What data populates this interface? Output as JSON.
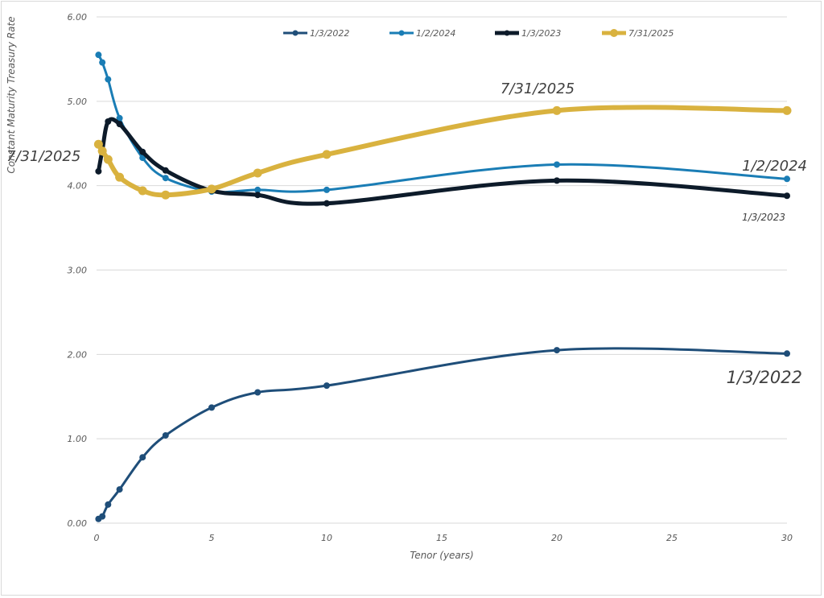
{
  "chart_data": {
    "type": "line",
    "title": "",
    "xlabel": "Tenor (years)",
    "ylabel": "Constant Maturity Treasury Rate",
    "xlim": [
      0,
      30
    ],
    "ylim": [
      0,
      6
    ],
    "x_ticks": [
      0,
      5,
      10,
      15,
      20,
      25,
      30
    ],
    "x_tick_labels": [
      "0",
      "5",
      "10",
      "15",
      "20",
      "25",
      "30"
    ],
    "y_ticks": [
      0,
      1,
      2,
      3,
      4,
      5,
      6
    ],
    "y_tick_labels": [
      "0.00",
      "1.00",
      "2.00",
      "3.00",
      "4.00",
      "5.00",
      "6.00"
    ],
    "grid": "horizontal",
    "legend_position": "top",
    "series": [
      {
        "name": "1/3/2022",
        "color": "#1f4e79",
        "x": [
          0.0833,
          0.25,
          0.5,
          1,
          2,
          3,
          5,
          7,
          10,
          20,
          30
        ],
        "values": [
          0.05,
          0.08,
          0.22,
          0.4,
          0.78,
          1.04,
          1.37,
          1.55,
          1.63,
          2.05,
          2.01
        ]
      },
      {
        "name": "1/2/2024",
        "color": "#1a7db5",
        "x": [
          0.0833,
          0.25,
          0.5,
          1,
          2,
          3,
          5,
          7,
          10,
          20,
          30
        ],
        "values": [
          5.55,
          5.46,
          5.26,
          4.8,
          4.33,
          4.09,
          3.93,
          3.95,
          3.95,
          4.25,
          4.08
        ]
      },
      {
        "name": "1/3/2023",
        "color": "#0d1b2a",
        "x": [
          0.0833,
          0.25,
          0.5,
          1,
          2,
          3,
          5,
          7,
          10,
          20,
          30
        ],
        "values": [
          4.17,
          4.42,
          4.76,
          4.73,
          4.4,
          4.18,
          3.94,
          3.89,
          3.79,
          4.06,
          3.88
        ]
      },
      {
        "name": "7/31/2025",
        "color": "#d9b23f",
        "x": [
          0.0833,
          0.25,
          0.5,
          1,
          2,
          3,
          5,
          7,
          10,
          20,
          30
        ],
        "values": [
          4.49,
          4.41,
          4.31,
          4.1,
          3.94,
          3.89,
          3.96,
          4.15,
          4.37,
          4.89,
          4.89
        ]
      }
    ],
    "annotations": [
      {
        "text": "7/31/2025",
        "series": "7/31/2025",
        "anchor": "left"
      },
      {
        "text": "7/31/2025",
        "series": "7/31/2025",
        "anchor": "above"
      },
      {
        "text": "1/2/2024",
        "series": "1/2/2024",
        "anchor": "right"
      },
      {
        "text": "1/3/2023",
        "series": "1/3/2023",
        "anchor": "right"
      },
      {
        "text": "1/3/2022",
        "series": "1/3/2022",
        "anchor": "right"
      }
    ]
  }
}
